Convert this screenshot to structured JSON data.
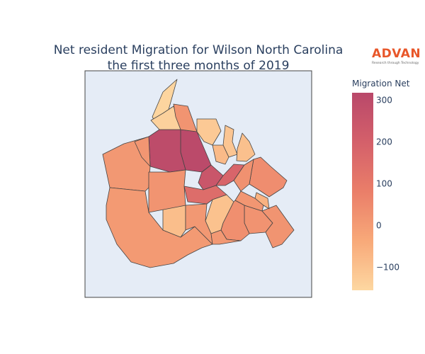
{
  "title_line1": "Net resident Migration for Wilson North Carolina",
  "title_line2": "the first three months of 2019",
  "logo": {
    "name": "ADVAN",
    "tagline": "Research through Technology",
    "color": "#e8572a"
  },
  "colorbar": {
    "title": "Migration Net",
    "range": [
      -155,
      318
    ],
    "ticks": [
      {
        "value": 300,
        "label": "300"
      },
      {
        "value": 200,
        "label": "200"
      },
      {
        "value": 100,
        "label": "100"
      },
      {
        "value": 0,
        "label": "0"
      },
      {
        "value": -100,
        "label": "−100"
      }
    ],
    "colors": [
      "#fdd7a1",
      "#f8a979",
      "#ea7e69",
      "#d4606a",
      "#b9486a"
    ]
  },
  "map": {
    "background": "#e5ecf6",
    "border": "#444444"
  },
  "regions": [
    {
      "name": "north-center",
      "value": 310
    },
    {
      "name": "north-left",
      "value": 300
    },
    {
      "name": "center-hub",
      "value": 250
    },
    {
      "name": "center-east-small",
      "value": 180
    },
    {
      "name": "center-south",
      "value": 150
    },
    {
      "name": "north-top",
      "value": -150
    },
    {
      "name": "north-top-left",
      "value": -140
    },
    {
      "name": "north-strip",
      "value": 20
    },
    {
      "name": "northeast-1",
      "value": -120
    },
    {
      "name": "northeast-2",
      "value": -110
    },
    {
      "name": "northeast-3",
      "value": -95
    },
    {
      "name": "northeast-4",
      "value": -80
    },
    {
      "name": "east-1",
      "value": 40
    },
    {
      "name": "east-2",
      "value": 30
    },
    {
      "name": "west-large",
      "value": 10
    },
    {
      "name": "northwest",
      "value": 15
    },
    {
      "name": "southwest-large",
      "value": 5
    },
    {
      "name": "south-center",
      "value": -90
    },
    {
      "name": "south-tan",
      "value": -100
    },
    {
      "name": "center-west",
      "value": 20
    },
    {
      "name": "south-mid",
      "value": 10
    },
    {
      "name": "southeast-1",
      "value": 25
    },
    {
      "name": "southeast-2",
      "value": 15
    },
    {
      "name": "southeast-3",
      "value": 20
    },
    {
      "name": "east-small",
      "value": -60
    },
    {
      "name": "east-small-2",
      "value": 35
    },
    {
      "name": "south-1",
      "value": 10
    }
  ]
}
